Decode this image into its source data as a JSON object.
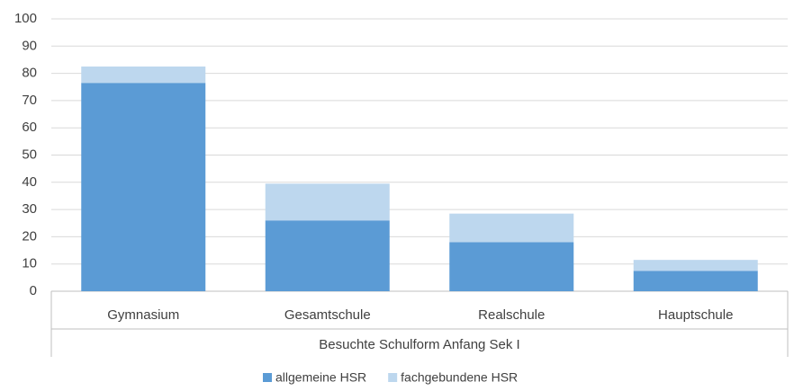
{
  "chart_data": {
    "type": "stacked_bar",
    "x_label": "Besuchte Schulform Anfang Sek I",
    "categories": [
      "Gymnasium",
      "Gesamtschule",
      "Realschule",
      "Hauptschule"
    ],
    "series": [
      {
        "name": "allgemeine HSR",
        "color": "#5b9bd5",
        "values": [
          76.5,
          26,
          18,
          7.5
        ]
      },
      {
        "name": "fachgebundene HSR",
        "color": "#bdd7ee",
        "values": [
          6,
          13.5,
          10.5,
          4
        ]
      }
    ],
    "ylim": [
      0,
      100
    ],
    "yticks": [
      0,
      10,
      20,
      30,
      40,
      50,
      60,
      70,
      80,
      90,
      100
    ],
    "grid": true,
    "legend": "bottom"
  }
}
